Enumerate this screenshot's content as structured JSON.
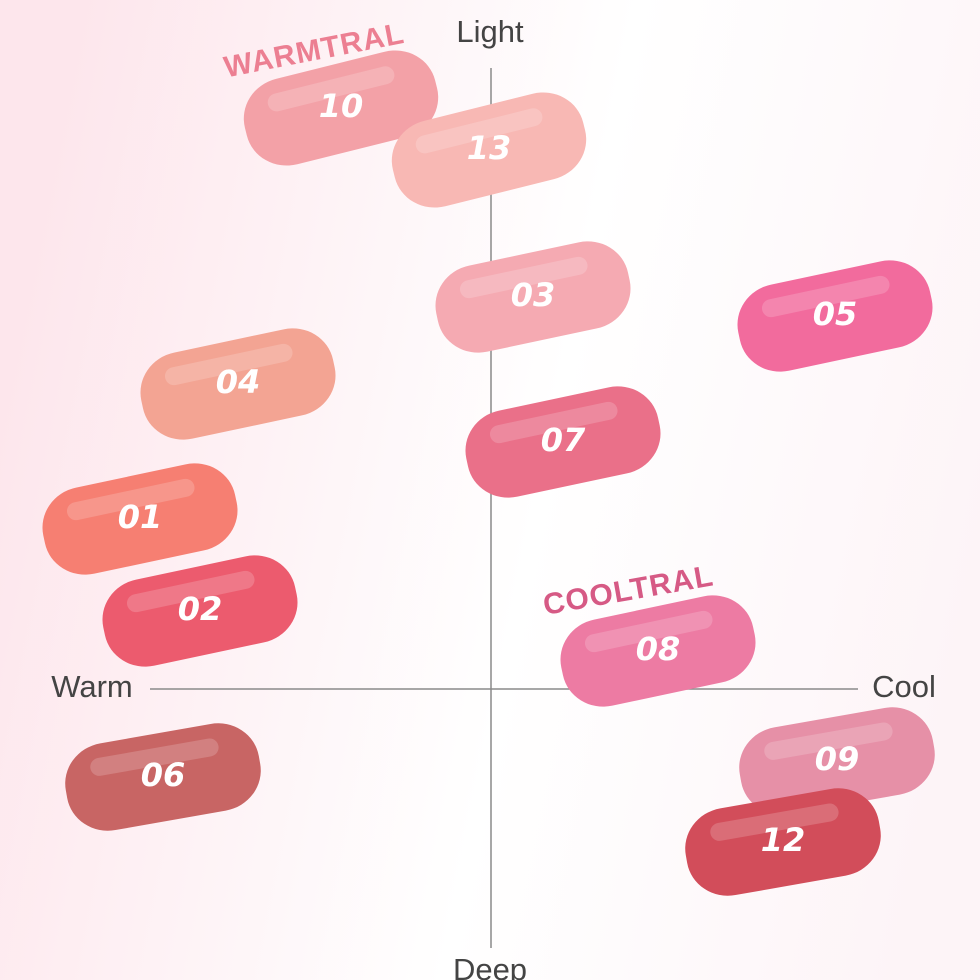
{
  "axes": {
    "top": "Light",
    "bottom": "Deep",
    "left": "Warm",
    "right": "Cool"
  },
  "tags": [
    "WARMTRAL",
    "COOLTRAL"
  ],
  "swatches": [
    "10",
    "13",
    "03",
    "05",
    "04",
    "07",
    "01",
    "02",
    "08",
    "06",
    "09",
    "12"
  ]
}
